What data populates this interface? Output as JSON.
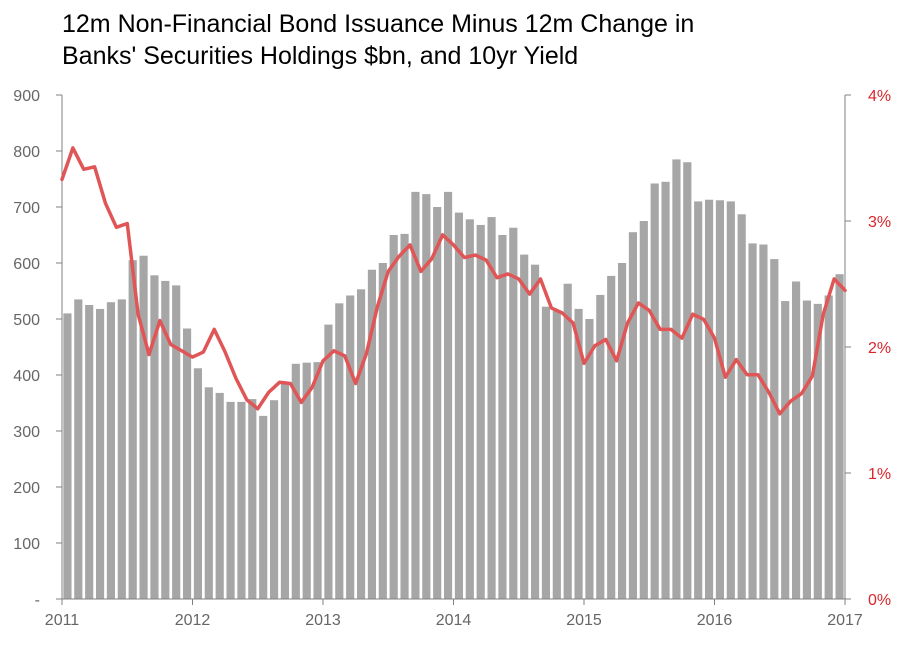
{
  "chart_data": {
    "type": "bar+line",
    "title_lines": [
      "12m Non-Financial Bond Issuance Minus 12m Change in",
      "Banks' Securities Holdings $bn, and 10yr Yield"
    ],
    "x_range": [
      2011.0,
      2017.0
    ],
    "x_tick_labels": [
      "2011",
      "2012",
      "2013",
      "2014",
      "2015",
      "2016",
      "2017"
    ],
    "y_left": {
      "range": [
        0,
        900
      ],
      "tick_labels": [
        "-",
        "100",
        "200",
        "300",
        "400",
        "500",
        "600",
        "700",
        "800",
        "900"
      ]
    },
    "y_right": {
      "range": [
        0,
        4
      ],
      "tick_labels": [
        "0%",
        "1%",
        "2%",
        "3%",
        "4%"
      ]
    },
    "grid": false,
    "legend": "none",
    "series": [
      {
        "type": "bar",
        "axis": "left",
        "color": "#a6a6a6",
        "start": "2011-01",
        "frequency": "monthly",
        "values": [
          510,
          535,
          525,
          518,
          530,
          535,
          605,
          613,
          578,
          568,
          560,
          483,
          412,
          378,
          368,
          352,
          352,
          357,
          327,
          355,
          385,
          420,
          422,
          423,
          490,
          528,
          542,
          553,
          588,
          600,
          650,
          652,
          727,
          723,
          700,
          727,
          690,
          678,
          668,
          682,
          650,
          663,
          615,
          597,
          522,
          515,
          563,
          518,
          500,
          543,
          577,
          600,
          655,
          675,
          742,
          745,
          785,
          780,
          710,
          713,
          712,
          710,
          687,
          635,
          633,
          607,
          532,
          567,
          533,
          527,
          542,
          580
        ]
      },
      {
        "type": "line",
        "axis": "right",
        "color": "#e05555",
        "start": "2011-01",
        "frequency": "monthly",
        "values": [
          3.33,
          3.58,
          3.41,
          3.43,
          3.14,
          2.95,
          2.98,
          2.26,
          1.94,
          2.21,
          2.02,
          1.97,
          1.92,
          1.96,
          2.14,
          1.96,
          1.75,
          1.58,
          1.51,
          1.64,
          1.72,
          1.71,
          1.56,
          1.68,
          1.89,
          1.97,
          1.93,
          1.71,
          1.95,
          2.32,
          2.6,
          2.72,
          2.81,
          2.6,
          2.7,
          2.89,
          2.81,
          2.71,
          2.73,
          2.69,
          2.55,
          2.58,
          2.54,
          2.42,
          2.54,
          2.31,
          2.27,
          2.19,
          1.87,
          2.01,
          2.06,
          1.89,
          2.19,
          2.35,
          2.29,
          2.14,
          2.14,
          2.07,
          2.26,
          2.22,
          2.07,
          1.76,
          1.9,
          1.78,
          1.78,
          1.64,
          1.47,
          1.57,
          1.63,
          1.77,
          2.26,
          2.54,
          2.45
        ]
      }
    ]
  }
}
